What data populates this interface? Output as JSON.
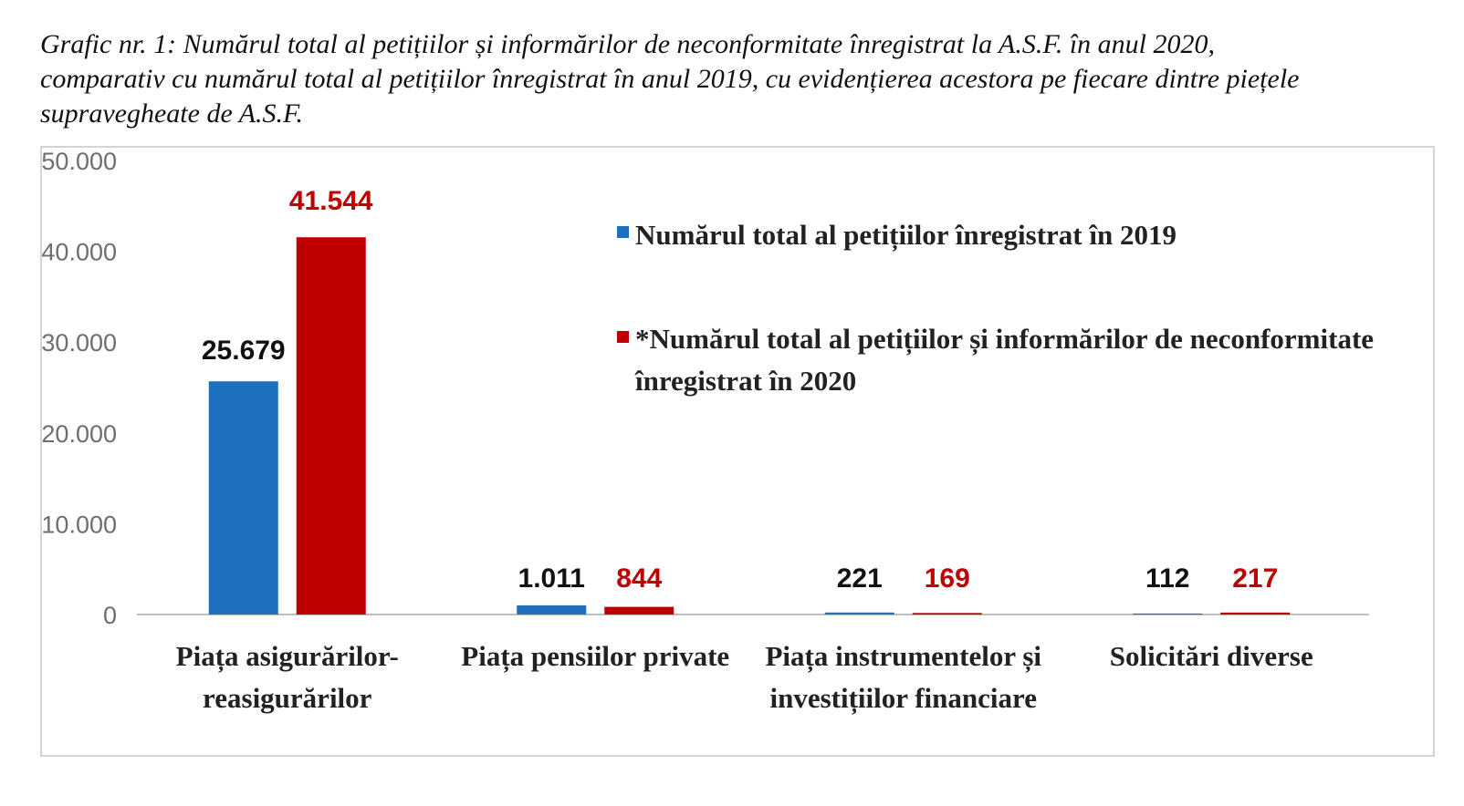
{
  "caption": {
    "line1": "Grafic nr. 1: Numărul total al petițiilor și informărilor de neconformitate înregistrat la A.S.F. în anul 2020,",
    "line2": "comparativ cu numărul total al petițiilor înregistrat în anul 2019, cu evidențierea acestora pe fiecare dintre piețele",
    "line3": "supravegheate de A.S.F."
  },
  "chart_data": {
    "type": "bar",
    "categories": [
      [
        "Piața asigurărilor-",
        "reasigurărilor"
      ],
      [
        "Piața pensiilor private"
      ],
      [
        "Piața instrumentelor și",
        "investițiilor financiare"
      ],
      [
        "Solicitări diverse"
      ]
    ],
    "series": [
      {
        "name": "Numărul total al petițiilor înregistrat în 2019",
        "values": [
          25679,
          1011,
          221,
          112
        ],
        "labels": [
          "25.679",
          "1.011",
          "221",
          "112"
        ],
        "color": "#1f6fbf",
        "label_color": "#111111"
      },
      {
        "name_lines": [
          "*Numărul total al petițiilor și informărilor de neconformitate",
          "înregistrat în 2020"
        ],
        "values": [
          41544,
          844,
          169,
          217
        ],
        "labels": [
          "41.544",
          "844",
          "169",
          "217"
        ],
        "color": "#c00000",
        "label_color": "#c00000"
      }
    ],
    "ylim": [
      0,
      50000
    ],
    "yticks": [
      "0",
      "10.000",
      "20.000",
      "30.000",
      "40.000",
      "50.000"
    ],
    "grid": false,
    "legend_position": "top-right"
  }
}
